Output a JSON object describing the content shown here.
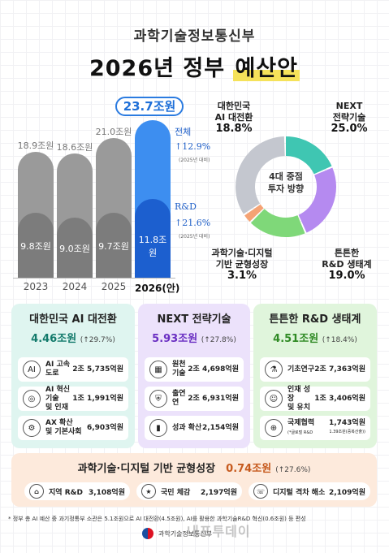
{
  "header": {
    "ministry": "과학기술정보통신부",
    "title_pre": "2026년 정부",
    "title_highlight": "예산안"
  },
  "chart_data": [
    {
      "type": "bar",
      "categories": [
        "2023",
        "2024",
        "2025",
        "2026(안)"
      ],
      "series": [
        {
          "name": "전체",
          "values": [
            18.9,
            18.6,
            21.0,
            23.7
          ]
        },
        {
          "name": "R&D",
          "values": [
            9.8,
            9.0,
            9.7,
            11.8
          ]
        }
      ],
      "top_labels": [
        "18.9조원",
        "18.6조원",
        "21.0조원",
        "23.7조원"
      ],
      "inner_labels": [
        "9.8조원",
        "9.0조원",
        "9.7조원",
        "11.8조원"
      ],
      "year_labels": [
        "2023",
        "2024",
        "2025",
        "2026"
      ],
      "year_suffix": "(안)",
      "annotations": {
        "total_label": "전체",
        "total_growth": "↑12.9%",
        "total_note": "(2025년 대비)",
        "rnd_label": "R&D",
        "rnd_growth": "↑21.6%",
        "rnd_note": "(2025년 대비)"
      },
      "colors": {
        "past": "#9a9a9a",
        "past_dark": "#7c7c7c",
        "current": "#3d8ef0",
        "current_dark": "#1c5fcf"
      }
    },
    {
      "type": "pie",
      "center_label": "4대 중점\n투자 방향",
      "slices": [
        {
          "label": "대한민국 AI 대전환",
          "value": 18.8,
          "pct": "18.8%",
          "color": "#3fc6b2"
        },
        {
          "label": "NEXT 전략기술",
          "value": 25.0,
          "pct": "25.0%",
          "color": "#b58af0"
        },
        {
          "label": "튼튼한 R&D 생태계",
          "value": 19.0,
          "pct": "19.0%",
          "color": "#7fd879"
        },
        {
          "label": "과학기술·디지털 기반 균형성장",
          "value": 3.1,
          "pct": "3.1%",
          "color": "#f5a374"
        },
        {
          "label": "기타",
          "value": 34.1,
          "pct": "",
          "color": "#c4c7cf"
        }
      ]
    }
  ],
  "donut_labels": {
    "ai_l1": "대한민국",
    "ai_l2": "AI 대전환",
    "ai_pct": "18.8%",
    "next_l1": "NEXT",
    "next_l2": "전략기술",
    "next_pct": "25.0%",
    "rnd_l1": "튼튼한",
    "rnd_l2": "R&D 생태계",
    "rnd_pct": "19.0%",
    "bal_l1": "과학기술·디지털",
    "bal_l2": "기반 균형성장",
    "bal_pct": "3.1%",
    "center_l1": "4대 중점",
    "center_l2": "투자 방향"
  },
  "panels": {
    "ai": {
      "title": "대한민국 AI 대전환",
      "amount": "4.46조원",
      "growth": "(↑29.7%)",
      "items": [
        {
          "icon": "AI",
          "name1": "AI 고속도로",
          "name2": "",
          "value": "2조 5,735억원",
          "sub": ""
        },
        {
          "icon": "◎",
          "name1": "AI 혁신기술",
          "name2": "및 인재",
          "value": "1조 1,991억원",
          "sub": ""
        },
        {
          "icon": "⚙",
          "name1": "AX 확산",
          "name2": "및 기본사회",
          "value": "6,903억원",
          "sub": ""
        }
      ]
    },
    "next": {
      "title": "NEXT 전략기술",
      "amount": "5.93조원",
      "growth": "(↑27.8%)",
      "items": [
        {
          "icon": "▦",
          "name1": "원천기술",
          "name2": "",
          "value": "2조 4,698억원",
          "sub": ""
        },
        {
          "icon": "⛨",
          "name1": "출연연",
          "name2": "",
          "value": "2조 6,931억원",
          "sub": ""
        },
        {
          "icon": "▮",
          "name1": "성과 확산",
          "name2": "",
          "value": "2,154억원",
          "sub": ""
        }
      ]
    },
    "rnd": {
      "title": "튼튼한 R&D 생태계",
      "amount": "4.51조원",
      "growth": "(↑18.4%)",
      "items": [
        {
          "icon": "⚗",
          "name1": "기초연구",
          "name2": "",
          "value": "2조 7,363억원",
          "sub": ""
        },
        {
          "icon": "☺",
          "name1": "인재 성장",
          "name2": "및 유치",
          "value": "1조 3,406억원",
          "sub": ""
        },
        {
          "icon": "⊕",
          "name1": "국제협력",
          "name2": "(*글로벌 R&D",
          "value": "1,743억원",
          "sub": "1.39조원(중복산출))"
        }
      ]
    },
    "balance": {
      "title": "과학기술·디지털 기반 균형성장",
      "amount": "0.74조원",
      "growth": "(↑27.6%)",
      "items": [
        {
          "icon": "⌂",
          "name": "지역 R&D",
          "value": "3,108억원"
        },
        {
          "icon": "★",
          "name": "국민 체감",
          "value": "2,197억원"
        },
        {
          "icon": "☏",
          "name": "디지털 격차 해소",
          "value": "2,109억원"
        }
      ]
    }
  },
  "note": "* 정부 총 AI 예산 중 과기정통부 소관은 5.1조원으로 AI 대전환(4.5조원), AI를 활용한 과학기술R&D 혁신(0.6조원) 등 편성",
  "footer": {
    "ministry": "과학기술정보통신부",
    "watermark": "내포투데이"
  }
}
